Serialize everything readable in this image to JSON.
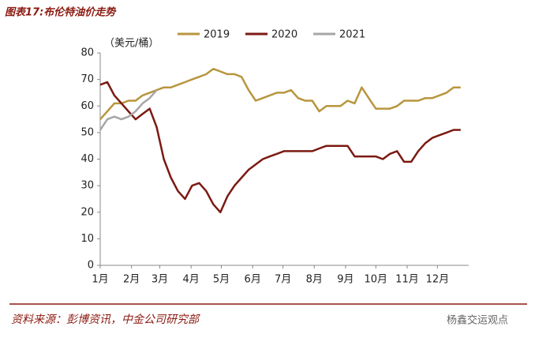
{
  "chart_data": {
    "type": "line",
    "title": "图表17:布伦特油价走势",
    "y_label": "（美元/桶）",
    "source": "资料来源：彭博资讯，中金公司研究部",
    "watermark": "杨鑫交运观点",
    "x": [
      0,
      7,
      14,
      21,
      28,
      35,
      42,
      49,
      56,
      63,
      70,
      77,
      84,
      91,
      98,
      105,
      112,
      119,
      126,
      133,
      140,
      147,
      154,
      161,
      168,
      175,
      182,
      189,
      196,
      203,
      210,
      217,
      224,
      231,
      238,
      245,
      252,
      259,
      266,
      273,
      280,
      287,
      294,
      301,
      308,
      315,
      322,
      329,
      336,
      343,
      350,
      357
    ],
    "xlim": [
      0,
      365
    ],
    "xticks": [
      {
        "value": 0,
        "label": "1月"
      },
      {
        "value": 31,
        "label": "2月"
      },
      {
        "value": 59,
        "label": "3月"
      },
      {
        "value": 90,
        "label": "4月"
      },
      {
        "value": 120,
        "label": "5月"
      },
      {
        "value": 151,
        "label": "6月"
      },
      {
        "value": 181,
        "label": "7月"
      },
      {
        "value": 212,
        "label": "8月"
      },
      {
        "value": 243,
        "label": "9月"
      },
      {
        "value": 273,
        "label": "10月"
      },
      {
        "value": 304,
        "label": "11月"
      },
      {
        "value": 334,
        "label": "12月"
      }
    ],
    "ylim": [
      0,
      80
    ],
    "yticks": [
      0,
      10,
      20,
      30,
      40,
      50,
      60,
      70,
      80
    ],
    "grid": false,
    "legend": "top",
    "series": [
      {
        "name": "2019",
        "color": "#b8963e",
        "values": [
          55,
          58,
          61,
          61,
          62,
          62,
          64,
          65,
          66,
          67,
          67,
          68,
          69,
          70,
          71,
          72,
          74,
          73,
          72,
          72,
          71,
          66,
          62,
          63,
          64,
          65,
          65,
          66,
          63,
          62,
          62,
          58,
          60,
          60,
          60,
          62,
          61,
          67,
          63,
          59,
          59,
          59,
          60,
          62,
          62,
          62,
          63,
          63,
          64,
          65,
          67,
          67
        ]
      },
      {
        "name": "2020",
        "color": "#7b1a12",
        "values": [
          68,
          69,
          64,
          61,
          58,
          55,
          57,
          59,
          52,
          40,
          33,
          28,
          25,
          30,
          31,
          28,
          23,
          20,
          26,
          30,
          33,
          36,
          38,
          40,
          41,
          42,
          43,
          43,
          43,
          43,
          43,
          44,
          45,
          45,
          45,
          45,
          41,
          41,
          41,
          41,
          40,
          42,
          43,
          39,
          39,
          43,
          46,
          48,
          49,
          50,
          51,
          51
        ]
      },
      {
        "name": "2021",
        "color": "#a6a6a6",
        "values": [
          51,
          55,
          56,
          55,
          56,
          58,
          61,
          63,
          66,
          null,
          null,
          null,
          null,
          null,
          null,
          null,
          null,
          null,
          null,
          null,
          null,
          null,
          null,
          null,
          null,
          null,
          null,
          null,
          null,
          null,
          null,
          null,
          null,
          null,
          null,
          null,
          null,
          null,
          null,
          null,
          null,
          null,
          null,
          null,
          null,
          null,
          null,
          null,
          null,
          null,
          null,
          null
        ]
      }
    ]
  }
}
